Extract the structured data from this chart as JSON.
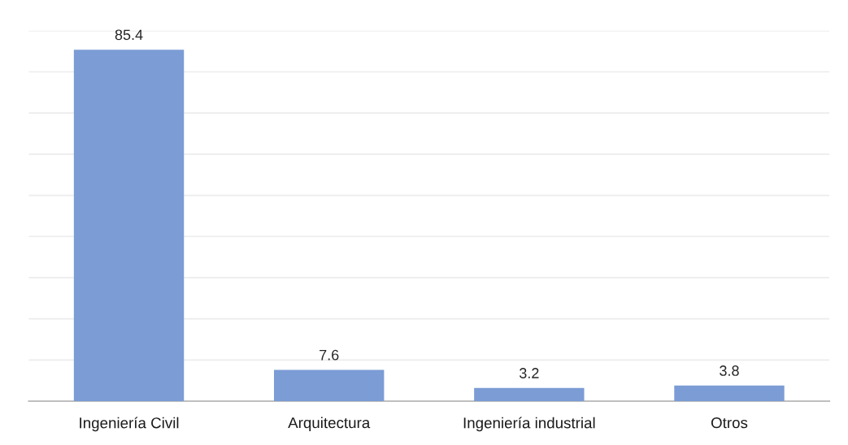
{
  "chart_data": {
    "type": "bar",
    "categories": [
      "Ingeniería Civil",
      "Arquitectura",
      "Ingeniería industrial",
      "Otros"
    ],
    "values": [
      85.4,
      7.6,
      3.2,
      3.8
    ],
    "color": "#7b9cd5",
    "ylim": [
      0,
      90
    ],
    "yticks": [
      {
        "value": 0,
        "label": null
      },
      {
        "value": 10,
        "label": null
      },
      {
        "value": 20,
        "label": null
      },
      {
        "value": 30,
        "label": null
      },
      {
        "value": 40,
        "label": null
      },
      {
        "value": 50,
        "label": null
      },
      {
        "value": 60,
        "label": null
      },
      {
        "value": 70,
        "label": null
      },
      {
        "value": 80,
        "label": null
      },
      {
        "value": 90,
        "label": null
      }
    ],
    "grid": "y",
    "data_labels": true,
    "tick_labels": "x"
  }
}
